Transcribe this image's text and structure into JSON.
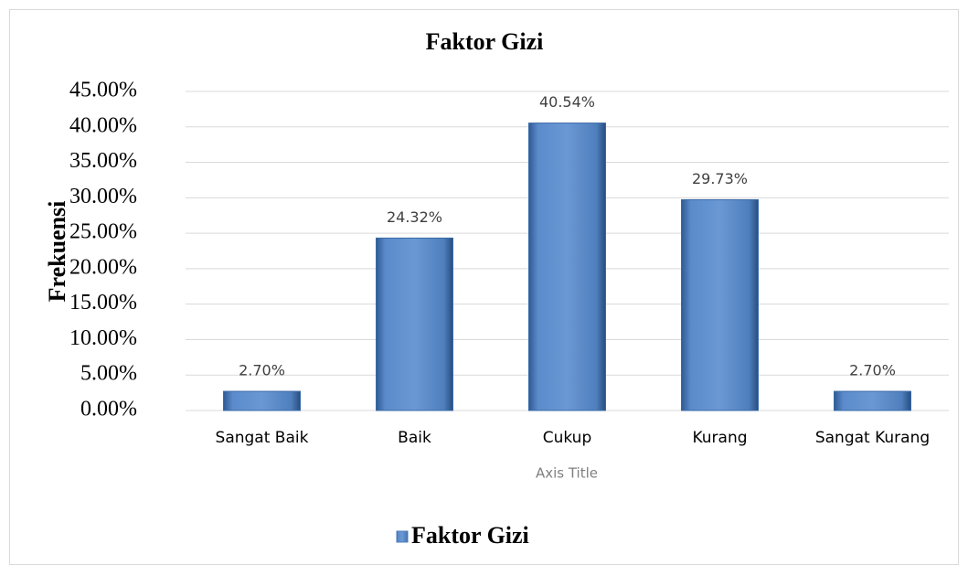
{
  "chart_data": {
    "type": "bar",
    "title": "Faktor Gizi",
    "x_label": "Axis Title",
    "y_label": "Frekuensi",
    "categories": [
      "Sangat Baik",
      "Baik",
      "Cukup",
      "Kurang",
      "Sangat Kurang"
    ],
    "series": [
      {
        "name": "Faktor Gizi",
        "color": "#4f81bd",
        "values": [
          2.7,
          24.32,
          40.54,
          29.73,
          2.7
        ],
        "value_labels": [
          "2.70%",
          "24.32%",
          "40.54%",
          "29.73%",
          "2.70%"
        ]
      }
    ],
    "ylim": [
      0,
      45
    ],
    "yticks": [
      {
        "value": 0,
        "label": "0.00%"
      },
      {
        "value": 5,
        "label": "5.00%"
      },
      {
        "value": 10,
        "label": "10.00%"
      },
      {
        "value": 15,
        "label": "15.00%"
      },
      {
        "value": 20,
        "label": "20.00%"
      },
      {
        "value": 25,
        "label": "25.00%"
      },
      {
        "value": 30,
        "label": "30.00%"
      },
      {
        "value": 35,
        "label": "35.00%"
      },
      {
        "value": 40,
        "label": "40.00%"
      },
      {
        "value": 45,
        "label": "45.00%"
      }
    ],
    "grid": true,
    "legend": "bottom"
  }
}
